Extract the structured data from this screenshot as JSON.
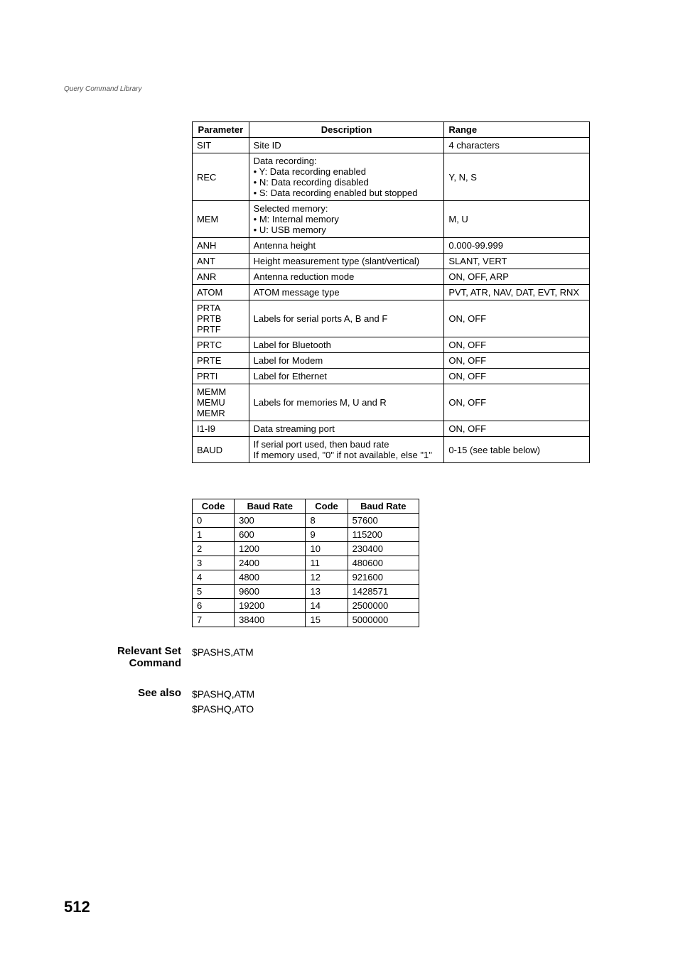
{
  "header": "Query Command Library",
  "param_table": {
    "headers": [
      "Parameter",
      "Description",
      "Range"
    ],
    "rows": [
      {
        "param": "SIT",
        "desc_text": "Site ID",
        "range": "4 characters"
      },
      {
        "param": "REC",
        "desc_lead": "Data recording:",
        "desc_items": [
          "Y: Data recording enabled",
          "N: Data recording disabled",
          "S: Data recording enabled but stopped"
        ],
        "range": "Y, N, S"
      },
      {
        "param": "MEM",
        "desc_lead": "Selected memory:",
        "desc_items": [
          "M: Internal memory",
          "U: USB memory"
        ],
        "range": "M, U"
      },
      {
        "param": "ANH",
        "desc_text": "Antenna height",
        "range": "0.000-99.999"
      },
      {
        "param": "ANT",
        "desc_text": "Height measurement type (slant/vertical)",
        "range": "SLANT, VERT"
      },
      {
        "param": "ANR",
        "desc_text": "Antenna reduction mode",
        "range": "ON, OFF, ARP"
      },
      {
        "param": "ATOM",
        "desc_text": "ATOM message type",
        "range": "PVT, ATR, NAV, DAT, EVT, RNX"
      },
      {
        "param": "PRTA\nPRTB\nPRTF",
        "desc_text": "Labels for serial ports A, B and F",
        "range": "ON, OFF"
      },
      {
        "param": "PRTC",
        "desc_text": "Label for Bluetooth",
        "range": "ON, OFF"
      },
      {
        "param": "PRTE",
        "desc_text": "Label for Modem",
        "range": "ON, OFF"
      },
      {
        "param": "PRTI",
        "desc_text": "Label for Ethernet",
        "range": "ON, OFF"
      },
      {
        "param": "MEMM\nMEMU\nMEMR",
        "desc_text": "Labels for memories M, U and R",
        "range": "ON, OFF"
      },
      {
        "param": "I1-I9",
        "desc_text": "Data streaming port",
        "range": "ON, OFF"
      },
      {
        "param": "BAUD",
        "desc_text": "If serial port used, then baud rate\nIf memory used, \"0\" if not available, else \"1\"",
        "range": "0-15 (see table below)"
      }
    ]
  },
  "baud_table": {
    "headers": [
      "Code",
      "Baud Rate",
      "Code",
      "Baud Rate"
    ],
    "rows": [
      [
        "0",
        "300",
        "8",
        "57600"
      ],
      [
        "1",
        "600",
        "9",
        "115200"
      ],
      [
        "2",
        "1200",
        "10",
        "230400"
      ],
      [
        "3",
        "2400",
        "11",
        "480600"
      ],
      [
        "4",
        "4800",
        "12",
        "921600"
      ],
      [
        "5",
        "9600",
        "13",
        "1428571"
      ],
      [
        "6",
        "19200",
        "14",
        "2500000"
      ],
      [
        "7",
        "38400",
        "15",
        "5000000"
      ]
    ]
  },
  "relevant_set": {
    "label": "Relevant Set Command",
    "body": "$PASHS,ATM"
  },
  "see_also": {
    "label": "See also",
    "body": "$PASHQ,ATM\n$PASHQ,ATO"
  },
  "page_number": "512"
}
